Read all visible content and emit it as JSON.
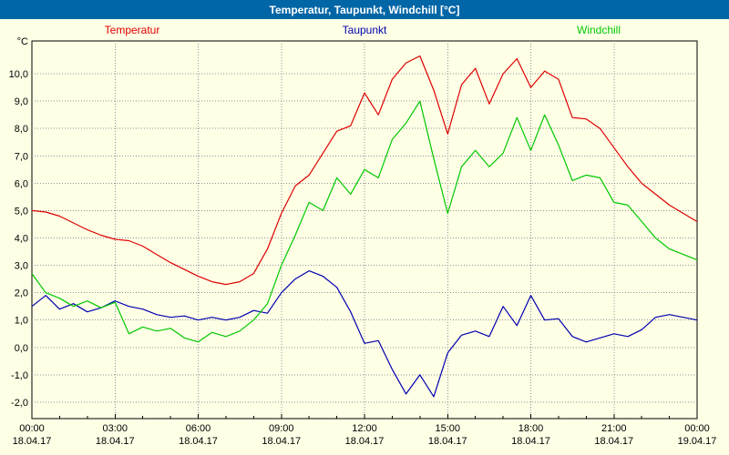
{
  "window": {
    "title": "Temperatur, Taupunkt, Windchill [°C]"
  },
  "chart_data": {
    "type": "line",
    "title": "Temperatur, Taupunkt, Windchill [°C]",
    "xlabel": "",
    "ylabel": "°C",
    "xlim": [
      0,
      24
    ],
    "ylim": [
      -2.6,
      11.2
    ],
    "grid": "dotted",
    "legend_position": "top",
    "x_tick_hours": [
      0,
      3,
      6,
      9,
      12,
      15,
      18,
      21,
      24
    ],
    "x_tick_labels": [
      "00:00",
      "03:00",
      "06:00",
      "09:00",
      "12:00",
      "15:00",
      "18:00",
      "21:00",
      "00:00"
    ],
    "x_tick_dates": [
      "18.04.17",
      "18.04.17",
      "18.04.17",
      "18.04.17",
      "18.04.17",
      "18.04.17",
      "18.04.17",
      "18.04.17",
      "19.04.17"
    ],
    "y_tick_values": [
      10,
      9,
      8,
      7,
      6,
      5,
      4,
      3,
      2,
      1,
      0,
      -1,
      -2
    ],
    "y_tick_labels": [
      "10,0",
      "9,0",
      "8,0",
      "7,0",
      "6,0",
      "5,0",
      "4,0",
      "3,0",
      "2,0",
      "1,0",
      "0,0",
      "-1,0",
      "-2,0"
    ],
    "x_hours": [
      0,
      0.5,
      1,
      1.5,
      2,
      2.5,
      3,
      3.5,
      4,
      4.5,
      5,
      5.5,
      6,
      6.5,
      7,
      7.5,
      8,
      8.5,
      9,
      9.5,
      10,
      10.5,
      11,
      11.5,
      12,
      12.5,
      13,
      13.5,
      14,
      14.5,
      15,
      15.5,
      16,
      16.5,
      17,
      17.5,
      18,
      18.5,
      19,
      19.5,
      20,
      20.5,
      21,
      21.5,
      22,
      22.5,
      23,
      23.5,
      24
    ],
    "series": [
      {
        "name": "Temperatur",
        "color": "#dd0000",
        "values": [
          5.0,
          4.95,
          4.8,
          4.55,
          4.3,
          4.1,
          3.95,
          3.9,
          3.7,
          3.4,
          3.1,
          2.85,
          2.6,
          2.4,
          2.3,
          2.4,
          2.7,
          3.6,
          4.9,
          5.9,
          6.3,
          7.1,
          7.9,
          8.1,
          9.3,
          8.5,
          9.8,
          10.4,
          10.65,
          9.4,
          7.8,
          9.6,
          10.2,
          8.9,
          10.0,
          10.55,
          9.5,
          10.1,
          9.8,
          8.4,
          8.35,
          8.0,
          7.3,
          6.6,
          6.0,
          5.6,
          5.2,
          4.9,
          4.6
        ]
      },
      {
        "name": "Taupunkt",
        "color": "#0000b0",
        "values": [
          1.5,
          1.9,
          1.4,
          1.6,
          1.3,
          1.45,
          1.7,
          1.5,
          1.4,
          1.2,
          1.1,
          1.15,
          1.0,
          1.1,
          1.0,
          1.1,
          1.35,
          1.25,
          2.0,
          2.5,
          2.8,
          2.6,
          2.2,
          1.3,
          0.15,
          0.25,
          -0.8,
          -1.7,
          -1.0,
          -1.8,
          -0.2,
          0.45,
          0.6,
          0.4,
          1.5,
          0.8,
          1.9,
          1.0,
          1.05,
          0.4,
          0.2,
          0.35,
          0.5,
          0.4,
          0.65,
          1.1,
          1.2,
          1.1,
          1.0
        ]
      },
      {
        "name": "Windchill",
        "color": "#00c800",
        "values": [
          2.7,
          2.0,
          1.8,
          1.5,
          1.7,
          1.45,
          1.65,
          0.5,
          0.75,
          0.6,
          0.7,
          0.35,
          0.2,
          0.55,
          0.4,
          0.6,
          1.0,
          1.6,
          3.0,
          4.1,
          5.3,
          5.0,
          6.2,
          5.6,
          6.5,
          6.2,
          7.6,
          8.2,
          9.0,
          6.9,
          4.9,
          6.6,
          7.2,
          6.6,
          7.1,
          8.4,
          7.2,
          8.5,
          7.4,
          6.1,
          6.3,
          6.2,
          5.3,
          5.2,
          4.6,
          4.0,
          3.6,
          3.4,
          3.2
        ]
      }
    ],
    "colors": {
      "titlebar_bg": "#0066a6",
      "titlebar_text": "#ffffff",
      "page_bg": "#ffffe6",
      "plot_bg": "#ffffe6",
      "grid": "#909090",
      "border": "#000000",
      "text": "#000000"
    }
  }
}
